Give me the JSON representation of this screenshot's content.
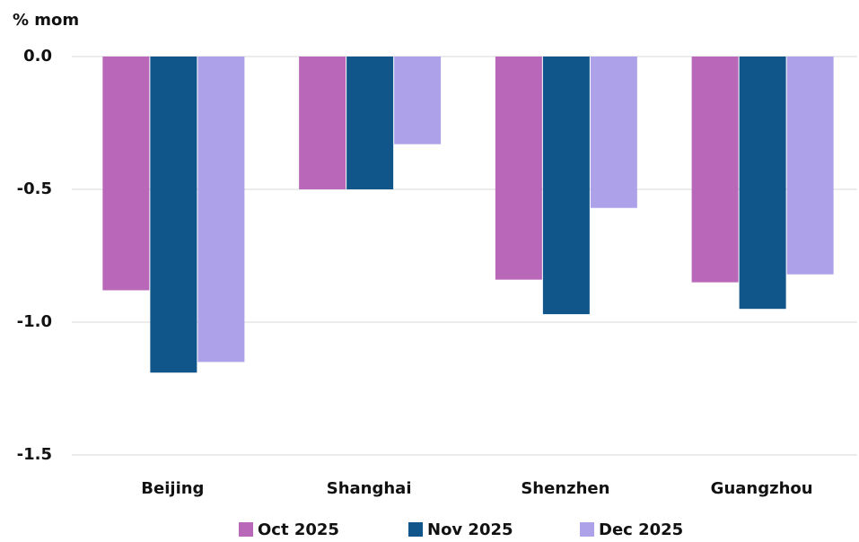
{
  "chart_data": {
    "type": "bar",
    "y_label": "% mom",
    "categories": [
      "Beijing",
      "Shanghai",
      "Shenzhen",
      "Guangzhou"
    ],
    "series": [
      {
        "name": "Oct 2025",
        "color": "#b967b8",
        "values": [
          -0.88,
          -0.5,
          -0.84,
          -0.85
        ]
      },
      {
        "name": "Nov 2025",
        "color": "#10568a",
        "values": [
          -1.19,
          -0.5,
          -0.97,
          -0.95
        ]
      },
      {
        "name": "Dec 2025",
        "color": "#ada2ea",
        "values": [
          -1.15,
          -0.33,
          -0.57,
          -0.82
        ]
      }
    ],
    "ylim": [
      -1.5,
      0
    ],
    "yticks": [
      {
        "value": 0,
        "label": "0.0"
      },
      -0.5,
      {
        "value": -1,
        "label": "-1.0"
      },
      -1.5
    ],
    "grid": true
  }
}
